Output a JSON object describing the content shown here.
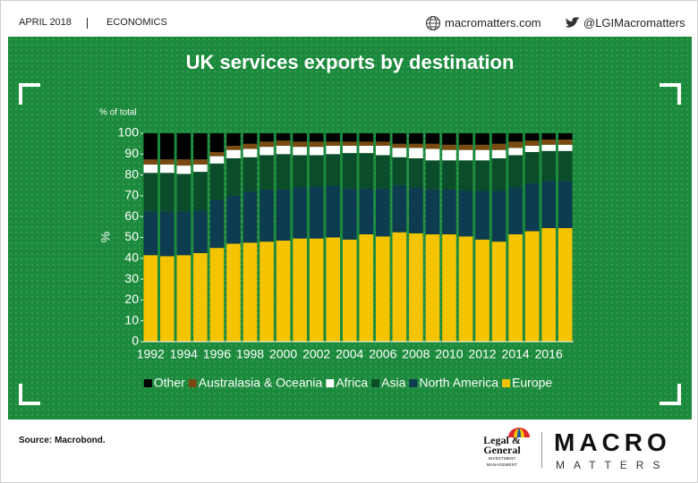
{
  "header": {
    "date": "APRIL 2018",
    "section": "ECONOMICS",
    "website": "macromatters.com",
    "twitter": "@LGIMacromatters"
  },
  "footer": {
    "source": "Source: Macrobond.",
    "brand_line1": "Legal &",
    "brand_line2": "General",
    "brand_line3": "INVESTMENT MANAGEMENT",
    "logo_line1": "MACRO",
    "logo_line2": "MATTERS"
  },
  "chart_data": {
    "type": "stacked_bar",
    "title": "UK services exports by destination",
    "subtitle": "% of total",
    "y_label": "%",
    "categories": [
      "1992",
      null,
      "1994",
      null,
      "1996",
      null,
      "1998",
      null,
      "2000",
      null,
      "2002",
      null,
      "2004",
      null,
      "2006",
      null,
      "2008",
      null,
      "2010",
      null,
      "2012",
      null,
      "2014",
      null,
      "2016",
      null
    ],
    "series": [
      {
        "name": "Europe",
        "color": "#f5c400",
        "values": [
          41.5,
          41,
          41.5,
          42.5,
          45,
          47,
          47.5,
          48,
          48.5,
          49.5,
          49.5,
          50,
          49,
          51.5,
          50.5,
          52.5,
          52,
          51.5,
          51.5,
          50.5,
          49,
          48,
          51.5,
          53,
          54.5,
          54.5
        ]
      },
      {
        "name": "North America",
        "color": "#0d3b4f",
        "values": [
          21,
          21.5,
          21,
          20.5,
          23,
          23,
          24.5,
          25,
          24.5,
          24.5,
          25,
          25,
          24.5,
          22,
          23,
          22.5,
          22,
          21.5,
          21.5,
          22,
          23.5,
          24.5,
          22.5,
          23,
          22.5,
          22.5
        ]
      },
      {
        "name": "Asia",
        "color": "#0b4d2a",
        "values": [
          18.5,
          18.5,
          18,
          18.5,
          17.5,
          18,
          16.5,
          16.5,
          17,
          15.5,
          15,
          15,
          17,
          17,
          16,
          13.5,
          14,
          14,
          14,
          14.5,
          14.5,
          15.5,
          15.5,
          15,
          14.5,
          14.5
        ]
      },
      {
        "name": "Africa",
        "color": "#ffffff",
        "values": [
          4,
          4,
          4,
          3.5,
          3.5,
          4,
          4,
          4,
          4,
          4,
          4,
          4,
          3.5,
          3.5,
          4.5,
          4.5,
          5,
          5.5,
          5,
          5,
          5,
          4,
          3.5,
          3,
          3,
          3
        ]
      },
      {
        "name": "Australasia & Oceania",
        "color": "#7a4a12",
        "values": [
          2.5,
          2.5,
          3,
          2.5,
          2,
          2,
          2.5,
          2.5,
          2.5,
          2.5,
          2.5,
          2,
          2,
          2,
          2,
          2,
          2,
          2.5,
          2.5,
          2.5,
          2.5,
          3,
          3,
          2.5,
          2.5,
          2.5
        ]
      },
      {
        "name": "Other",
        "color": "#000000",
        "values": [
          12.5,
          12.5,
          12.5,
          12.5,
          9,
          6,
          5,
          4,
          3.5,
          4,
          4,
          4,
          4,
          4,
          4,
          5,
          5,
          5,
          5.5,
          5.5,
          5.5,
          5,
          4,
          3.5,
          3,
          3
        ]
      }
    ],
    "ylim": [
      0,
      100
    ],
    "yticks": [
      0,
      10,
      20,
      30,
      40,
      50,
      60,
      70,
      80,
      90,
      100
    ],
    "grid": false
  }
}
